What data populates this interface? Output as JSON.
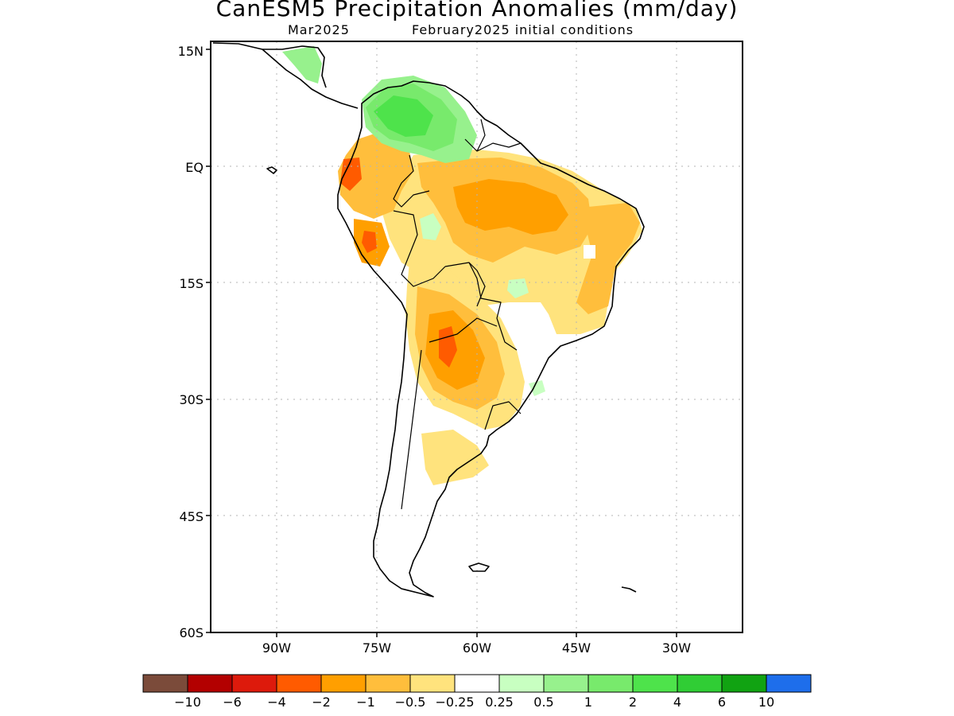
{
  "title": "CanESM5 Precipitation Anomalies (mm/day)",
  "subtitle_month": "Mar2025",
  "subtitle_conditions": "February2025 initial conditions",
  "map": {
    "lat_labels": [
      "15N",
      "EQ",
      "15S",
      "30S",
      "45S",
      "60S"
    ],
    "lon_labels": [
      "90W",
      "75W",
      "60W",
      "45W",
      "30W"
    ]
  },
  "colorbar": {
    "colors": [
      "#7b4b3a",
      "#b30000",
      "#dd1a0c",
      "#ff5b00",
      "#ff9f00",
      "#ffbe3c",
      "#ffe37d",
      "#ffffff",
      "#c8ffc1",
      "#97f18d",
      "#78ea6c",
      "#4ee34b",
      "#30cd35",
      "#11a312",
      "#1e6eeb"
    ],
    "labels": [
      "−10",
      "−6",
      "−4",
      "−2",
      "−1",
      "−0.5",
      "−0.25",
      "0.25",
      "0.5",
      "1",
      "2",
      "4",
      "6",
      "10"
    ]
  },
  "anomaly_regions": [
    {
      "region": "Venezuela / Colombia north",
      "category": "2 to 4"
    },
    {
      "region": "Central America",
      "category": "0.5 to 1"
    },
    {
      "region": "Amazon basin",
      "category": "−1 to −0.5"
    },
    {
      "region": "Paraguay / Chaco",
      "category": "−4 to −2"
    },
    {
      "region": "Peru Andes",
      "category": "−2 to −1"
    },
    {
      "region": "Northern Argentina",
      "category": "−0.5 to −0.25"
    }
  ]
}
